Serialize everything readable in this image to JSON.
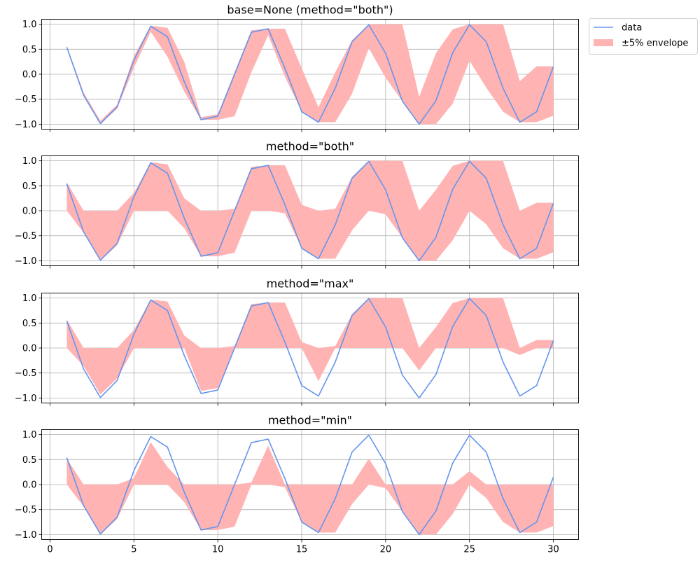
{
  "chart_data": {
    "type": "line",
    "x": [
      1,
      2,
      3,
      4,
      5,
      6,
      7,
      8,
      9,
      10,
      11,
      12,
      13,
      14,
      15,
      16,
      17,
      18,
      19,
      20,
      21,
      22,
      23,
      24,
      25,
      26,
      27,
      28,
      29,
      30
    ],
    "series": [
      {
        "name": "data",
        "color": "#6495ed",
        "values": [
          0.54,
          -0.42,
          -0.99,
          -0.65,
          0.28,
          0.96,
          0.75,
          -0.15,
          -0.91,
          -0.84,
          0.0,
          0.84,
          0.91,
          0.12,
          -0.75,
          -0.96,
          -0.28,
          0.65,
          0.99,
          0.42,
          -0.54,
          -1.0,
          -0.53,
          0.43,
          0.99,
          0.65,
          -0.28,
          -0.96,
          -0.75,
          0.15
        ]
      }
    ],
    "envelope": {
      "name": "±5% envelope",
      "color": "#ffb3b3",
      "upper": [
        0.57,
        -0.36,
        -0.93,
        -0.61,
        0.36,
        0.97,
        0.93,
        0.25,
        -0.86,
        -0.8,
        0.04,
        0.88,
        0.91,
        0.91,
        0.12,
        -0.66,
        0.04,
        0.68,
        1.0,
        1.0,
        1.0,
        -0.45,
        0.42,
        0.9,
        1.0,
        1.0,
        1.0,
        -0.14,
        0.16,
        0.16
      ],
      "lower": [
        0.52,
        -0.44,
        -1.0,
        -0.69,
        0.13,
        0.85,
        0.35,
        -0.35,
        -0.91,
        -0.91,
        -0.84,
        0.04,
        0.78,
        -0.05,
        -0.75,
        -0.96,
        -0.96,
        -0.39,
        0.52,
        -0.07,
        -0.54,
        -1.0,
        -1.0,
        -0.59,
        0.27,
        -0.27,
        -0.75,
        -0.96,
        -0.96,
        -0.83
      ]
    },
    "xlim": [
      -0.5,
      31.5
    ],
    "ylim": [
      -1.1,
      1.1
    ],
    "xticks": [
      0,
      5,
      10,
      15,
      20,
      25,
      30
    ],
    "yticks": [
      -1.0,
      -0.5,
      0.0,
      0.5,
      1.0
    ],
    "ytick_labels": [
      "−1.0",
      "−0.5",
      "0.0",
      "0.5",
      "1.0"
    ],
    "grid": true,
    "legend_position": "outside-top-right",
    "panels": [
      {
        "title": "base=None (method=\"both\")",
        "mode": "band"
      },
      {
        "title": "method=\"both\"",
        "mode": "both"
      },
      {
        "title": "method=\"max\"",
        "mode": "max"
      },
      {
        "title": "method=\"min\"",
        "mode": "min"
      }
    ]
  },
  "legend": {
    "items": [
      {
        "label": "data",
        "kind": "line",
        "color": "#6495ed"
      },
      {
        "label": "±5% envelope",
        "kind": "patch",
        "color": "#ffb3b3"
      }
    ]
  }
}
